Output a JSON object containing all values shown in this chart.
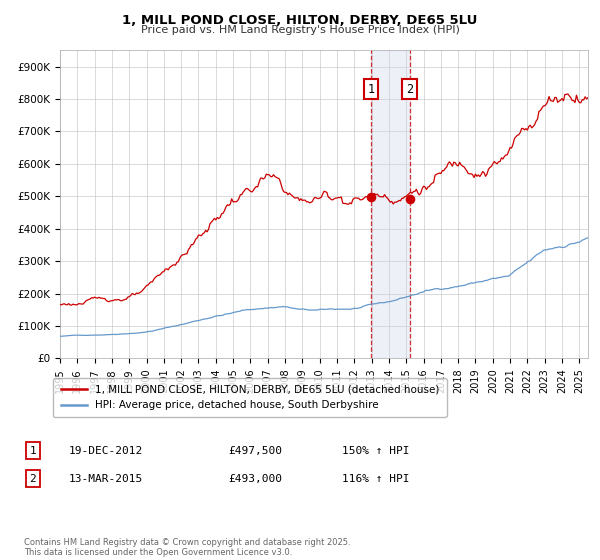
{
  "title": "1, MILL POND CLOSE, HILTON, DERBY, DE65 5LU",
  "subtitle": "Price paid vs. HM Land Registry's House Price Index (HPI)",
  "ylim": [
    0,
    950000
  ],
  "xlim_start": 1995.0,
  "xlim_end": 2025.5,
  "background_color": "#ffffff",
  "grid_color": "#cccccc",
  "sale1_date_num": 2012.97,
  "sale2_date_num": 2015.19,
  "sale1_price": 497500,
  "sale2_price": 493000,
  "sale1_label": "1",
  "sale2_label": "2",
  "sale1_date_str": "19-DEC-2012",
  "sale2_date_str": "13-MAR-2015",
  "sale1_hpi": "150% ↑ HPI",
  "sale2_hpi": "116% ↑ HPI",
  "red_color": "#cc0000",
  "blue_color": "#6699cc",
  "shade_color": "#ccd5e8",
  "legend1": "1, MILL POND CLOSE, HILTON, DERBY, DE65 5LU (detached house)",
  "legend2": "HPI: Average price, detached house, South Derbyshire",
  "footer": "Contains HM Land Registry data © Crown copyright and database right 2025.\nThis data is licensed under the Open Government Licence v3.0.",
  "yticks": [
    0,
    100000,
    200000,
    300000,
    400000,
    500000,
    600000,
    700000,
    800000,
    900000
  ],
  "ytick_labels": [
    "£0",
    "£100K",
    "£200K",
    "£300K",
    "£400K",
    "£500K",
    "£600K",
    "£700K",
    "£800K",
    "£900K"
  ]
}
